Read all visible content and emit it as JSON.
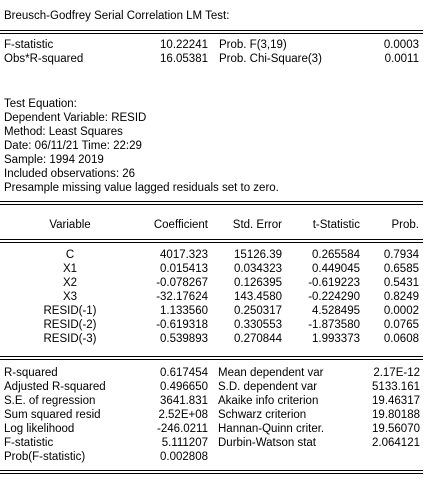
{
  "title": "Breusch-Godfrey Serial Correlation LM Test:",
  "test_stats": [
    {
      "label": "F-statistic",
      "value": "10.22241",
      "prob_label": "Prob. F(3,19)",
      "prob": "0.0003"
    },
    {
      "label": "Obs*R-squared",
      "value": "16.05381",
      "prob_label": "Prob. Chi-Square(3)",
      "prob": "0.0011"
    }
  ],
  "equation_info": [
    "Test Equation:",
    "Dependent Variable: RESID",
    "Method: Least Squares",
    "Date: 06/11/21   Time: 22:29",
    "Sample: 1994 2019",
    "Included observations: 26",
    "Presample missing value lagged residuals set to zero."
  ],
  "columns": [
    "Variable",
    "Coefficient",
    "Std. Error",
    "t-Statistic",
    "Prob."
  ],
  "rows": [
    {
      "variable": "C",
      "coefficient": "4017.323",
      "std_error": "15126.39",
      "t_stat": "0.265584",
      "prob": "0.7934"
    },
    {
      "variable": "X1",
      "coefficient": "0.015413",
      "std_error": "0.034323",
      "t_stat": "0.449045",
      "prob": "0.6585"
    },
    {
      "variable": "X2",
      "coefficient": "-0.078267",
      "std_error": "0.126395",
      "t_stat": "-0.619223",
      "prob": "0.5431"
    },
    {
      "variable": "X3",
      "coefficient": "-32.17624",
      "std_error": "143.4580",
      "t_stat": "-0.224290",
      "prob": "0.8249"
    },
    {
      "variable": "RESID(-1)",
      "coefficient": "1.133560",
      "std_error": "0.250317",
      "t_stat": "4.528495",
      "prob": "0.0002"
    },
    {
      "variable": "RESID(-2)",
      "coefficient": "-0.619318",
      "std_error": "0.330553",
      "t_stat": "-1.873580",
      "prob": "0.0765"
    },
    {
      "variable": "RESID(-3)",
      "coefficient": "0.539893",
      "std_error": "0.270844",
      "t_stat": "1.993373",
      "prob": "0.0608"
    }
  ],
  "summary": [
    {
      "l_label": "R-squared",
      "l_value": "0.617454",
      "r_label": "Mean dependent var",
      "r_value": "2.17E-12"
    },
    {
      "l_label": "Adjusted R-squared",
      "l_value": "0.496650",
      "r_label": "S.D. dependent var",
      "r_value": "5133.161"
    },
    {
      "l_label": "S.E. of regression",
      "l_value": "3641.831",
      "r_label": "Akaike info criterion",
      "r_value": "19.46317"
    },
    {
      "l_label": "Sum squared resid",
      "l_value": "2.52E+08",
      "r_label": "Schwarz criterion",
      "r_value": "19.80188"
    },
    {
      "l_label": "Log likelihood",
      "l_value": "-246.0211",
      "r_label": "Hannan-Quinn criter.",
      "r_value": "19.56070"
    },
    {
      "l_label": "F-statistic",
      "l_value": "5.111207",
      "r_label": "Durbin-Watson stat",
      "r_value": "2.064121"
    },
    {
      "l_label": "Prob(F-statistic)",
      "l_value": "0.002808",
      "r_label": "",
      "r_value": ""
    }
  ]
}
